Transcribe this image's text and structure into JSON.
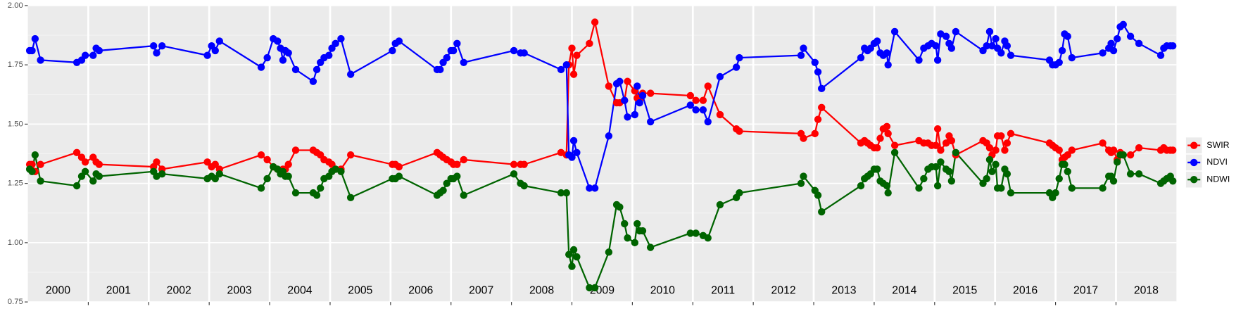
{
  "chart_data": {
    "type": "line",
    "x": [
      2000.03,
      2000.07,
      2000.12,
      2000.21,
      2000.81,
      2000.89,
      2000.95,
      2001.08,
      2001.13,
      2001.18,
      2002.08,
      2002.13,
      2002.22,
      2002.97,
      2003.04,
      2003.1,
      2003.17,
      2003.86,
      2003.96,
      2004.06,
      2004.13,
      2004.18,
      2004.22,
      2004.26,
      2004.31,
      2004.43,
      2004.72,
      2004.78,
      2004.84,
      2004.9,
      2004.98,
      2005.03,
      2005.09,
      2005.18,
      2005.34,
      2006.03,
      2006.08,
      2006.14,
      2006.77,
      2006.82,
      2006.87,
      2006.93,
      2007.0,
      2007.04,
      2007.1,
      2007.21,
      2008.04,
      2008.15,
      2008.21,
      2008.82,
      2008.91,
      2008.95,
      2009.0,
      2009.03,
      2009.08,
      2009.29,
      2009.38,
      2009.61,
      2009.74,
      2009.79,
      2009.87,
      2009.92,
      2010.04,
      2010.08,
      2010.12,
      2010.17,
      2010.3,
      2010.96,
      2011.05,
      2011.17,
      2011.25,
      2011.45,
      2011.72,
      2011.77,
      2012.79,
      2012.83,
      2013.02,
      2013.07,
      2013.13,
      2013.78,
      2013.84,
      2013.89,
      2013.94,
      2014.0,
      2014.05,
      2014.1,
      2014.15,
      2014.21,
      2014.23,
      2014.34,
      2014.74,
      2014.82,
      2014.89,
      2014.95,
      2015.02,
      2015.05,
      2015.1,
      2015.19,
      2015.24,
      2015.28,
      2015.35,
      2015.8,
      2015.86,
      2015.91,
      2015.95,
      2016.01,
      2016.04,
      2016.1,
      2016.16,
      2016.2,
      2016.26,
      2016.9,
      2016.95,
      2017.0,
      2017.06,
      2017.11,
      2017.15,
      2017.2,
      2017.27,
      2017.78,
      2017.88,
      2017.92,
      2017.96,
      2018.02,
      2018.07,
      2018.12,
      2018.24,
      2018.38,
      2018.74,
      2018.79,
      2018.84,
      2018.9,
      2018.94
    ],
    "series": [
      {
        "name": "SWIR",
        "color": "#ff0000",
        "values": [
          1.33,
          1.33,
          1.3,
          1.33,
          1.38,
          1.36,
          1.34,
          1.36,
          1.34,
          1.33,
          1.32,
          1.34,
          1.31,
          1.34,
          1.32,
          1.33,
          1.31,
          1.37,
          1.35,
          1.32,
          1.31,
          1.3,
          1.31,
          1.31,
          1.33,
          1.39,
          1.39,
          1.38,
          1.37,
          1.35,
          1.34,
          1.33,
          1.31,
          1.31,
          1.37,
          1.33,
          1.33,
          1.32,
          1.38,
          1.37,
          1.36,
          1.35,
          1.34,
          1.33,
          1.33,
          1.35,
          1.33,
          1.33,
          1.33,
          1.38,
          1.37,
          1.75,
          1.82,
          1.71,
          1.79,
          1.84,
          1.93,
          1.66,
          1.59,
          1.59,
          1.6,
          1.68,
          1.64,
          1.61,
          1.6,
          1.63,
          1.63,
          1.62,
          1.6,
          1.6,
          1.66,
          1.54,
          1.48,
          1.47,
          1.46,
          1.44,
          1.46,
          1.52,
          1.57,
          1.42,
          1.43,
          1.42,
          1.41,
          1.4,
          1.4,
          1.44,
          1.48,
          1.49,
          1.46,
          1.41,
          1.43,
          1.42,
          1.42,
          1.41,
          1.41,
          1.48,
          1.39,
          1.42,
          1.45,
          1.43,
          1.37,
          1.43,
          1.42,
          1.4,
          1.37,
          1.39,
          1.45,
          1.45,
          1.39,
          1.42,
          1.46,
          1.42,
          1.41,
          1.4,
          1.39,
          1.35,
          1.36,
          1.37,
          1.39,
          1.42,
          1.39,
          1.38,
          1.39,
          1.35,
          1.38,
          1.37,
          1.37,
          1.4,
          1.39,
          1.4,
          1.39,
          1.39,
          1.39
        ]
      },
      {
        "name": "NDVI",
        "color": "#0000ff",
        "values": [
          1.81,
          1.81,
          1.86,
          1.77,
          1.76,
          1.77,
          1.79,
          1.79,
          1.82,
          1.81,
          1.83,
          1.8,
          1.83,
          1.79,
          1.83,
          1.81,
          1.85,
          1.74,
          1.78,
          1.86,
          1.85,
          1.82,
          1.77,
          1.81,
          1.8,
          1.73,
          1.68,
          1.73,
          1.76,
          1.78,
          1.79,
          1.82,
          1.84,
          1.86,
          1.71,
          1.81,
          1.84,
          1.85,
          1.73,
          1.73,
          1.76,
          1.78,
          1.81,
          1.81,
          1.84,
          1.76,
          1.81,
          1.8,
          1.8,
          1.73,
          1.75,
          1.37,
          1.36,
          1.43,
          1.38,
          1.23,
          1.23,
          1.45,
          1.67,
          1.68,
          1.6,
          1.53,
          1.54,
          1.66,
          1.59,
          1.62,
          1.51,
          1.58,
          1.56,
          1.56,
          1.51,
          1.7,
          1.74,
          1.78,
          1.79,
          1.82,
          1.76,
          1.72,
          1.65,
          1.78,
          1.82,
          1.81,
          1.82,
          1.84,
          1.85,
          1.8,
          1.79,
          1.8,
          1.75,
          1.89,
          1.77,
          1.82,
          1.83,
          1.84,
          1.83,
          1.77,
          1.88,
          1.87,
          1.84,
          1.82,
          1.89,
          1.81,
          1.83,
          1.89,
          1.83,
          1.86,
          1.82,
          1.8,
          1.85,
          1.83,
          1.79,
          1.77,
          1.75,
          1.75,
          1.76,
          1.81,
          1.88,
          1.87,
          1.78,
          1.8,
          1.82,
          1.84,
          1.81,
          1.86,
          1.91,
          1.92,
          1.87,
          1.84,
          1.79,
          1.82,
          1.83,
          1.83,
          1.83
        ]
      },
      {
        "name": "NDWI",
        "color": "#006400",
        "values": [
          1.31,
          1.3,
          1.37,
          1.26,
          1.24,
          1.28,
          1.3,
          1.26,
          1.29,
          1.28,
          1.3,
          1.28,
          1.29,
          1.27,
          1.28,
          1.27,
          1.29,
          1.23,
          1.27,
          1.32,
          1.31,
          1.29,
          1.3,
          1.28,
          1.28,
          1.21,
          1.21,
          1.2,
          1.23,
          1.27,
          1.28,
          1.3,
          1.31,
          1.3,
          1.19,
          1.27,
          1.27,
          1.28,
          1.2,
          1.21,
          1.22,
          1.25,
          1.27,
          1.27,
          1.28,
          1.2,
          1.29,
          1.25,
          1.24,
          1.21,
          1.21,
          0.95,
          0.9,
          0.97,
          0.94,
          0.81,
          0.81,
          0.96,
          1.16,
          1.15,
          1.08,
          1.02,
          1.0,
          1.08,
          1.05,
          1.05,
          0.98,
          1.04,
          1.04,
          1.03,
          1.02,
          1.16,
          1.19,
          1.21,
          1.25,
          1.28,
          1.22,
          1.2,
          1.13,
          1.24,
          1.27,
          1.28,
          1.29,
          1.31,
          1.31,
          1.26,
          1.25,
          1.24,
          1.21,
          1.38,
          1.23,
          1.27,
          1.31,
          1.32,
          1.32,
          1.24,
          1.34,
          1.31,
          1.3,
          1.26,
          1.38,
          1.25,
          1.27,
          1.35,
          1.3,
          1.33,
          1.23,
          1.23,
          1.31,
          1.29,
          1.21,
          1.21,
          1.19,
          1.21,
          1.27,
          1.33,
          1.33,
          1.3,
          1.23,
          1.23,
          1.28,
          1.28,
          1.26,
          1.34,
          1.37,
          1.37,
          1.29,
          1.29,
          1.25,
          1.26,
          1.27,
          1.28,
          1.26
        ]
      }
    ],
    "xlim": [
      2000,
      2019
    ],
    "xticks": [
      2001,
      2002,
      2003,
      2004,
      2005,
      2006,
      2007,
      2008,
      2009,
      2010,
      2011,
      2012,
      2013,
      2014,
      2015,
      2016,
      2017,
      2018
    ],
    "ylim": [
      0.75,
      2.0
    ],
    "yticks": [
      0.75,
      {
        "value": 1.0,
        "label": "1.00"
      },
      1.25,
      {
        "value": 1.5,
        "label": "1.50"
      },
      1.75,
      {
        "value": 2.0,
        "label": "2.00"
      }
    ],
    "grid": true,
    "legend": "right",
    "year_labels": [
      {
        "x": 2000.5,
        "text": "2000"
      },
      {
        "x": 2001.5,
        "text": "2001"
      },
      {
        "x": 2002.5,
        "text": "2002"
      },
      {
        "x": 2003.5,
        "text": "2003"
      },
      {
        "x": 2004.5,
        "text": "2004"
      },
      {
        "x": 2005.5,
        "text": "2005"
      },
      {
        "x": 2006.5,
        "text": "2006"
      },
      {
        "x": 2007.5,
        "text": "2007"
      },
      {
        "x": 2008.5,
        "text": "2008"
      },
      {
        "x": 2009.5,
        "text": "2009"
      },
      {
        "x": 2010.5,
        "text": "2010"
      },
      {
        "x": 2011.5,
        "text": "2011"
      },
      {
        "x": 2012.5,
        "text": "2012"
      },
      {
        "x": 2013.5,
        "text": "2013"
      },
      {
        "x": 2014.5,
        "text": "2014"
      },
      {
        "x": 2015.5,
        "text": "2015"
      },
      {
        "x": 2016.5,
        "text": "2016"
      },
      {
        "x": 2017.5,
        "text": "2017"
      },
      {
        "x": 2018.5,
        "text": "2018"
      }
    ]
  }
}
